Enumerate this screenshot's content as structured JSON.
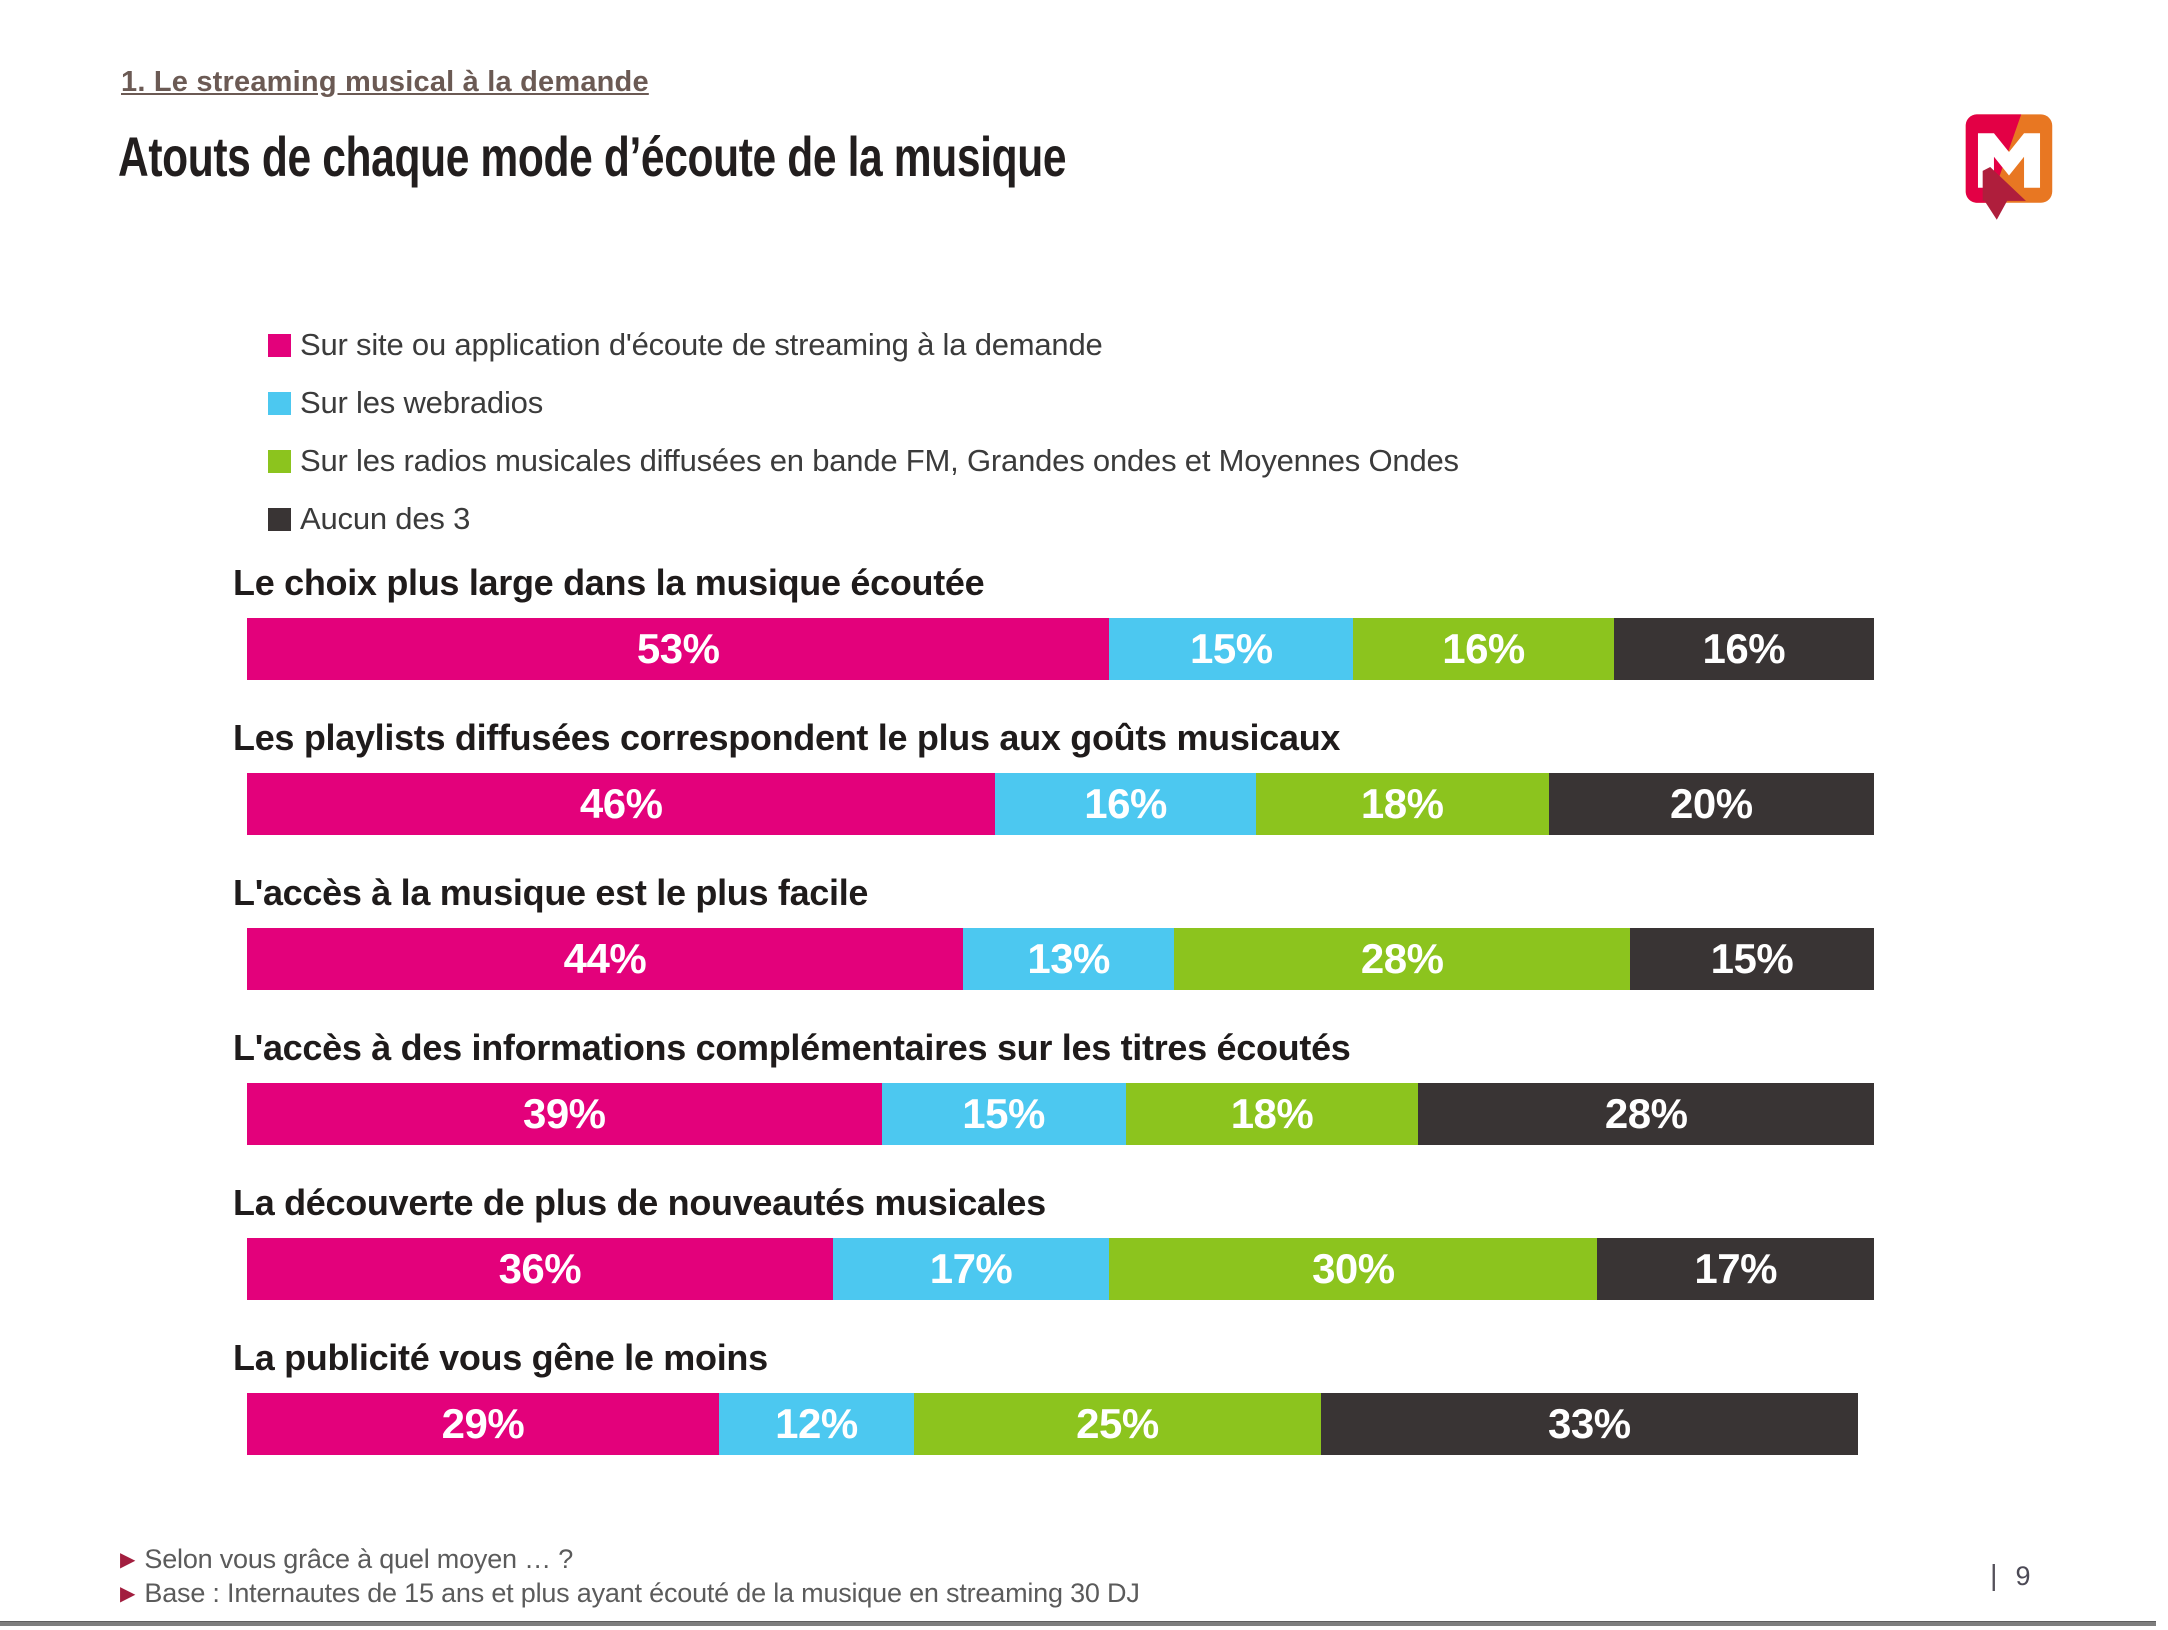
{
  "header": {
    "section_link": "1. Le streaming musical à la demande",
    "title": "Atouts de chaque mode d’écoute de la musique"
  },
  "logo": {
    "name": "mediametrie-logo",
    "letter": "M",
    "colors": {
      "red": "#E30045",
      "orange": "#E87722",
      "dark_red": "#AF1E3C",
      "letter": "#FFFFFF"
    }
  },
  "legend": [
    {
      "label": "Sur site ou application d'écoute de streaming à la demande",
      "color": "#E3017B"
    },
    {
      "label": "Sur les webradios",
      "color": "#4CC8F0"
    },
    {
      "label": "Sur les radios musicales diffusées en bande FM, Grandes ondes et Moyennes Ondes",
      "color": "#8CC41E"
    },
    {
      "label": "Aucun des 3",
      "color": "#393434"
    }
  ],
  "chart_data": {
    "type": "bar",
    "variant": "horizontal-stacked",
    "value_suffix": "%",
    "xlim": [
      0,
      100
    ],
    "categories": [
      "Le choix plus large dans la musique écoutée",
      "Les playlists diffusées correspondent le plus aux goûts musicaux",
      "L'accès à la musique est le plus facile",
      "L'accès à des informations complémentaires sur les titres écoutés",
      "La découverte de plus de nouveautés musicales",
      "La publicité vous gêne le moins"
    ],
    "series": [
      {
        "name": "Sur site ou application d'écoute de streaming à la demande",
        "color": "#E3017B",
        "values": [
          53,
          46,
          44,
          39,
          36,
          29
        ]
      },
      {
        "name": "Sur les webradios",
        "color": "#4CC8F0",
        "values": [
          15,
          16,
          13,
          15,
          17,
          12
        ]
      },
      {
        "name": "Sur les radios musicales diffusées en bande FM, Grandes ondes et Moyennes Ondes",
        "color": "#8CC41E",
        "values": [
          16,
          18,
          28,
          18,
          30,
          25
        ]
      },
      {
        "name": "Aucun des 3",
        "color": "#393434",
        "values": [
          16,
          20,
          15,
          28,
          17,
          33
        ]
      }
    ]
  },
  "footer": {
    "lines": [
      "Selon vous grâce à quel moyen … ?",
      "Base : Internautes de 15 ans et plus ayant écouté de la musique en streaming 30 DJ"
    ]
  },
  "icons": {
    "footer_bullet": "▶"
  },
  "page": {
    "number": "9",
    "separator": "|"
  }
}
